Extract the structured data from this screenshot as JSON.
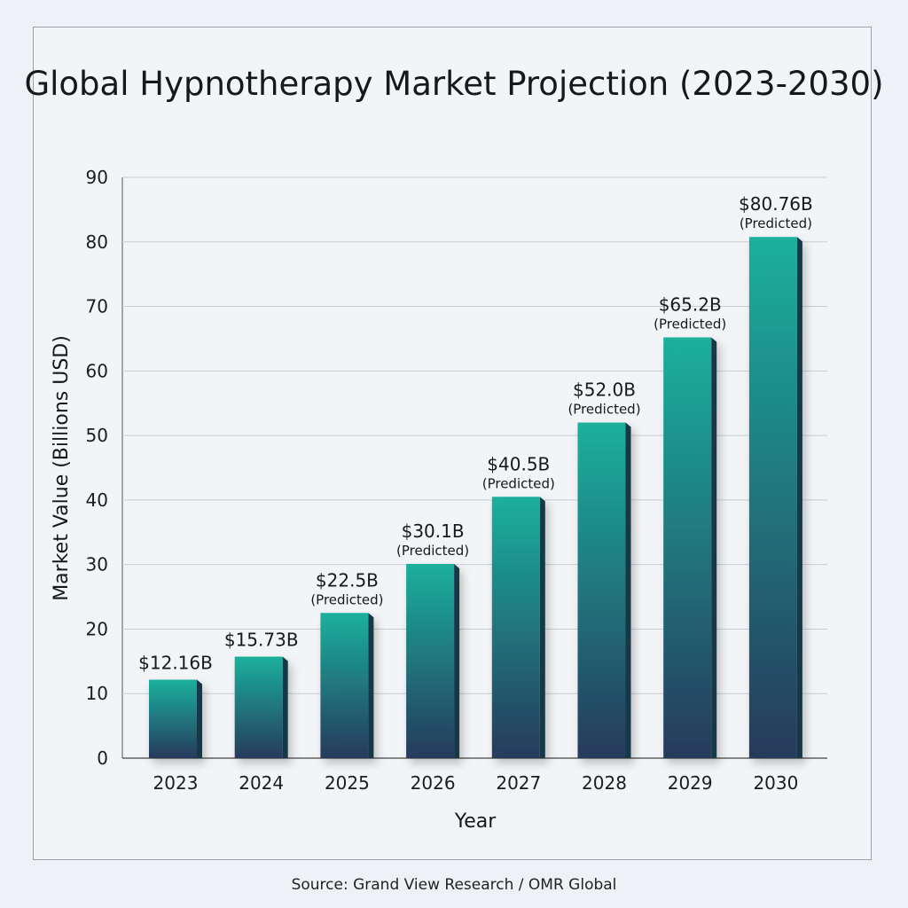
{
  "chart_data": {
    "type": "bar",
    "title": "Global Hypnotherapy Market Projection (2023-2030)",
    "xlabel": "Year",
    "ylabel": "Market Value (Billions USD)",
    "ylim": [
      0,
      90
    ],
    "yticks": [
      0,
      10,
      20,
      30,
      40,
      50,
      60,
      70,
      80,
      90
    ],
    "grid": true,
    "categories": [
      "2023",
      "2024",
      "2025",
      "2026",
      "2027",
      "2028",
      "2029",
      "2030"
    ],
    "values": [
      12.16,
      15.73,
      22.5,
      30.1,
      40.5,
      52.0,
      65.2,
      80.76
    ],
    "data_labels": [
      "$12.16B",
      "$15.73B",
      "$22.5B",
      "$30.1B",
      "$40.5B",
      "$52.0B",
      "$65.2B",
      "$80.76B"
    ],
    "predicted": [
      false,
      false,
      true,
      true,
      true,
      true,
      true,
      true
    ],
    "predicted_label": "(Predicted)",
    "colors": {
      "bar_top": "#1bb09d",
      "bar_bottom": "#263a5c",
      "bar_side": "#123747",
      "grid": "#c9cdd3"
    }
  },
  "source": "Source: Grand View Research / OMR Global"
}
